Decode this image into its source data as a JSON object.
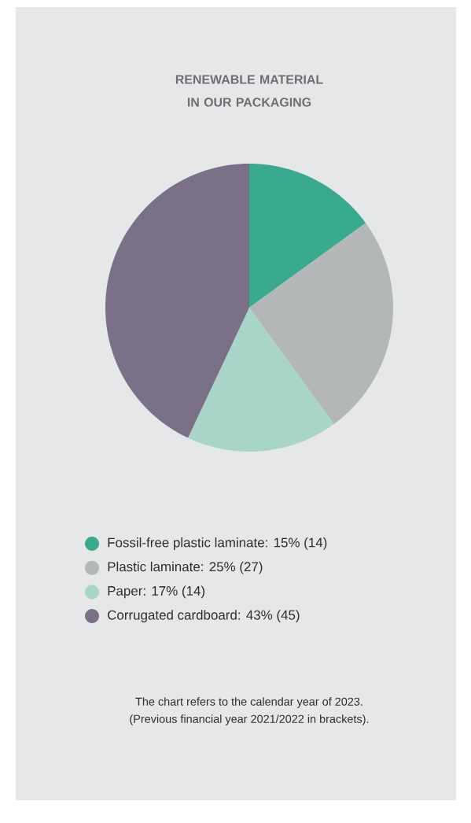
{
  "chart_data": {
    "type": "pie",
    "title": "RENEWABLE MATERIAL IN OUR PACKAGING",
    "categories": [
      "Fossil-free plastic laminate: 15% (14)",
      "Plastic laminate: 25% (27)",
      "Paper: 17% (14)",
      "Corrugated cardboard: 43% (45)"
    ],
    "values": [
      15,
      25,
      17,
      43
    ],
    "colors": [
      "#3aaa8e",
      "#b3b7b7",
      "#a9d5c8",
      "#7a7189"
    ],
    "legend": "bottom",
    "annotations": [
      "The chart refers to the calendar year of 2023.",
      "(Previous financial year 2021/2022 in brackets)."
    ]
  }
}
